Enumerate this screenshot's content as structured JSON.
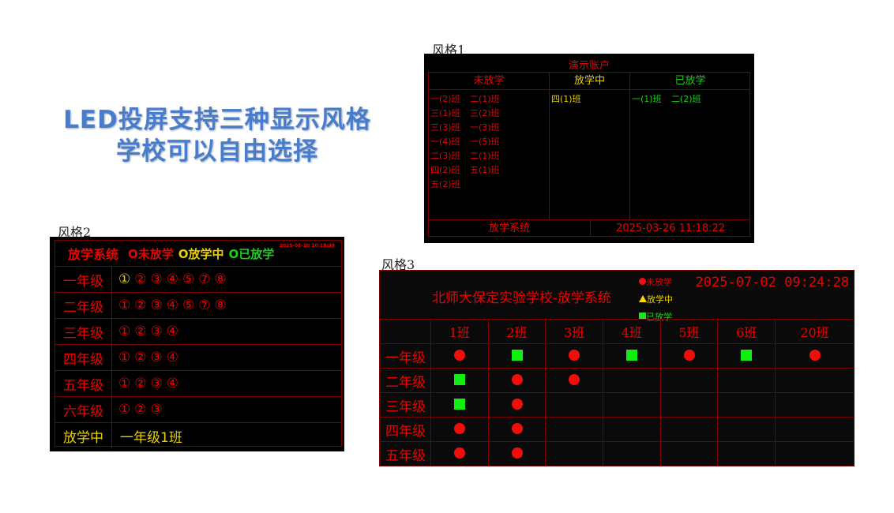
{
  "headline": {
    "line1": "LED投屏支持三种显示风格",
    "line2": "学校可以自由选择"
  },
  "colors": {
    "not_dismissed": "#ee0000",
    "dismissing": "#e8d000",
    "dismissed": "#1bd01b",
    "headline": "#4a7ccc"
  },
  "style1": {
    "label": "风格1",
    "title": "演示账户",
    "columns": [
      {
        "header": "未放学",
        "classes": [
          "一(2)班",
          "二(1)班",
          "三(1)班",
          "三(2)班",
          "三(3)班",
          "一(3)班",
          "一(4)班",
          "一(5)班",
          "二(3)班",
          "二(1)班",
          "四(2)班",
          "五(1)班",
          "五(2)班"
        ]
      },
      {
        "header": "放学中",
        "classes": [
          "四(1)班"
        ]
      },
      {
        "header": "已放学",
        "classes": [
          "一(1)班",
          "二(2)班"
        ]
      }
    ],
    "footer_left": "放学系统",
    "footer_right": "2025-03-26 11:18:22"
  },
  "style2": {
    "label": "风格2",
    "title": "放学系统",
    "legend": [
      "O未放学",
      "O放学中",
      "O已放学"
    ],
    "datetime": "2025-03-20 10:18:39",
    "rows": [
      {
        "grade": "一年级",
        "classes": [
          "①",
          "②",
          "③",
          "④",
          "⑤",
          "⑦",
          "⑧"
        ],
        "dismissing": [
          0
        ]
      },
      {
        "grade": "二年级",
        "classes": [
          "①",
          "②",
          "③",
          "④",
          "⑤",
          "⑦",
          "⑧"
        ]
      },
      {
        "grade": "三年级",
        "classes": [
          "①",
          "②",
          "③",
          "④"
        ]
      },
      {
        "grade": "四年级",
        "classes": [
          "①",
          "②",
          "③",
          "④"
        ]
      },
      {
        "grade": "五年级",
        "classes": [
          "①",
          "②",
          "③",
          "④"
        ]
      },
      {
        "grade": "六年级",
        "classes": [
          "①",
          "②",
          "③"
        ]
      }
    ],
    "status_label": "放学中",
    "status_value": "一年级1班"
  },
  "style3": {
    "label": "风格3",
    "title": "北师大保定实验学校-放学系统",
    "datetime": "2025-07-02 09:24:28",
    "legend": [
      {
        "icon": "red-circle",
        "text": "未放学"
      },
      {
        "icon": "yellow-triangle",
        "text": "放学中"
      },
      {
        "icon": "green-square",
        "text": "已放学"
      }
    ],
    "columns": [
      "1班",
      "2班",
      "3班",
      "4班",
      "5班",
      "6班",
      "20班"
    ],
    "rows": [
      {
        "grade": "一年级",
        "status": [
          "red",
          "green",
          "red",
          "green",
          "red",
          "green",
          "red"
        ]
      },
      {
        "grade": "二年级",
        "status": [
          "green",
          "red",
          "red",
          "",
          "",
          "",
          ""
        ]
      },
      {
        "grade": "三年级",
        "status": [
          "green",
          "red",
          "",
          "",
          "",
          "",
          ""
        ]
      },
      {
        "grade": "四年级",
        "status": [
          "red",
          "red",
          "",
          "",
          "",
          "",
          ""
        ]
      },
      {
        "grade": "五年级",
        "status": [
          "red",
          "red",
          "",
          "",
          "",
          "",
          ""
        ]
      }
    ]
  }
}
